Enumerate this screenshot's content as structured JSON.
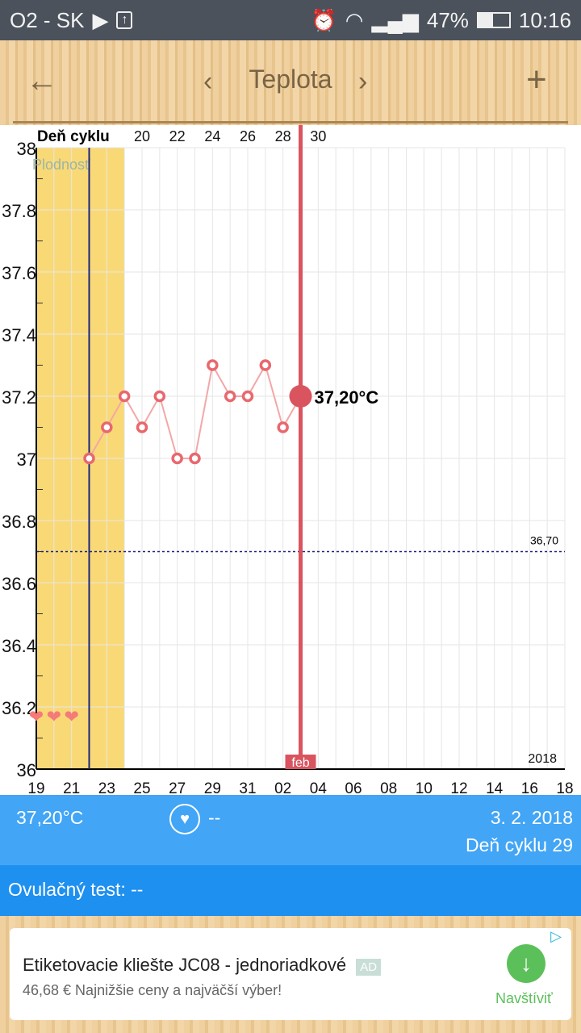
{
  "status_bar": {
    "carrier": "O2 - SK",
    "battery": "47%",
    "time": "10:16",
    "icons": [
      "play-store-icon",
      "upload-icon",
      "alarm-icon",
      "wifi-icon",
      "signal-icon",
      "battery-icon"
    ]
  },
  "header": {
    "title": "Teplota",
    "back_icon": "arrow-left-icon",
    "prev_icon": "chevron-left-icon",
    "next_icon": "chevron-right-icon",
    "add_icon": "plus-icon"
  },
  "chart_data": {
    "type": "line",
    "top_axis_label": "Deň cyklu",
    "fertility_label": "Plodnosť",
    "year_label": "2018",
    "month_label": "feb",
    "ylim": [
      36,
      38
    ],
    "y_ticks": [
      "38",
      "37.8",
      "37.6",
      "37.4",
      "37.2",
      "37",
      "36.8",
      "36.6",
      "36.4",
      "36.2",
      "36"
    ],
    "x_range": [
      "2018-01-19",
      "2018-02-18"
    ],
    "x_tick_labels": [
      "19",
      "21",
      "23",
      "25",
      "27",
      "29",
      "31",
      "02",
      "04",
      "06",
      "08",
      "10",
      "12",
      "14",
      "16",
      "18"
    ],
    "cycle_day_ticks": [
      {
        "date": "2018-01-25",
        "day": "20"
      },
      {
        "date": "2018-01-27",
        "day": "22"
      },
      {
        "date": "2018-01-29",
        "day": "24"
      },
      {
        "date": "2018-01-31",
        "day": "26"
      },
      {
        "date": "2018-02-02",
        "day": "28"
      },
      {
        "date": "2018-02-04",
        "day": "30"
      }
    ],
    "fertile_window": [
      "2018-01-19",
      "2018-01-24"
    ],
    "ovulation_line_date": "2018-01-22",
    "selected_date": "2018-02-03",
    "selected_label": "37,20°C",
    "coverline": {
      "value": 36.7,
      "label": "36,70"
    },
    "heart_dates": [
      "2018-01-19",
      "2018-01-20",
      "2018-01-21"
    ],
    "x": [
      "2018-01-22",
      "2018-01-23",
      "2018-01-24",
      "2018-01-25",
      "2018-01-26",
      "2018-01-27",
      "2018-01-28",
      "2018-01-29",
      "2018-01-30",
      "2018-01-31",
      "2018-02-01",
      "2018-02-02",
      "2018-02-03"
    ],
    "values": [
      37.0,
      37.1,
      37.2,
      37.1,
      37.2,
      37.0,
      37.0,
      37.3,
      37.2,
      37.2,
      37.3,
      37.1,
      37.2
    ],
    "grid": true,
    "colors": {
      "line": "#e8686e",
      "fertile": "#f9d976",
      "ovulation": "#1a237e",
      "selected": "#d9545e",
      "coverline": "#1a237e"
    }
  },
  "info": {
    "temperature": "37,20°C",
    "intercourse_icon": "heart-circle-icon",
    "intercourse_value": "--",
    "date": "3. 2. 2018",
    "cycle_day": "Deň cyklu 29"
  },
  "ovulation": {
    "label": "Ovulačný test:",
    "value": "--"
  },
  "ad": {
    "title": "Etiketovacie kliešte JC08 - jednoriadkové",
    "badge": "AD",
    "subtitle": "46,68 € Najnižšie ceny a najväčší výber!",
    "cta": "Navštíviť",
    "cta_color": "#5cc05a"
  }
}
